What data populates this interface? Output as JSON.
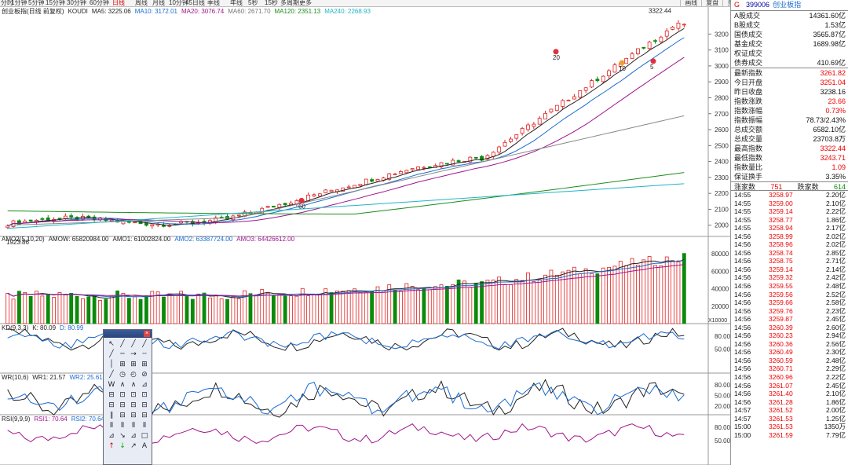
{
  "toolbar": {
    "periods": [
      "分时",
      "1分钟",
      "5分钟",
      "15分钟",
      "30分钟",
      "60分钟",
      "日线",
      "周线",
      "月线",
      "10分钟",
      "45日线",
      "季线",
      "年线",
      "5秒",
      "15秒",
      "多周期",
      "更多"
    ],
    "active_period": "日线",
    "right_buttons": [
      "画线",
      "复盘",
      "多股",
      "统计",
      "画线",
      "F10",
      "自选",
      "返回"
    ]
  },
  "price_chart": {
    "title": "创业板指(日线 前复权)",
    "indicator": "KOUDI",
    "ma_labels": [
      {
        "text": "MA5: 3225.06",
        "color": "#222222"
      },
      {
        "text": "MA10: 3172.01",
        "color": "#1a6bd0"
      },
      {
        "text": "MA20: 3076.74",
        "color": "#a0158c"
      },
      {
        "text": "MA60: 2671.70",
        "color": "#777777"
      },
      {
        "text": "MA120: 2351.13",
        "color": "#1a8c1a"
      },
      {
        "text": "MA240: 2268.93",
        "color": "#22b4c8"
      }
    ],
    "y_ticks": [
      "3200",
      "3100",
      "3000",
      "2900",
      "2800",
      "2700",
      "2600",
      "2500",
      "2400",
      "2300",
      "2200",
      "2100",
      "2000"
    ],
    "high_label": "3322.44",
    "low_label": "1923.86",
    "markers": [
      "20",
      "10",
      "5",
      "60"
    ]
  },
  "volume_chart": {
    "header": [
      {
        "text": "AMO2(5,10,20)",
        "color": "#222222"
      },
      {
        "text": "AMOW: 65820984.00",
        "color": "#222222"
      },
      {
        "text": "AMO1: 61002824.00",
        "color": "#222222"
      },
      {
        "text": "AMO2: 63387724.00",
        "color": "#1a6bd0"
      },
      {
        "text": "AMO3: 64426612.00",
        "color": "#a0158c"
      }
    ],
    "y_ticks": [
      "80000",
      "60000",
      "40000",
      "20000"
    ],
    "unit": "X10000"
  },
  "kd_chart": {
    "header": [
      {
        "text": "KD(9,3,3)",
        "color": "#222222"
      },
      {
        "text": "K: 80.09",
        "color": "#222222"
      },
      {
        "text": "D: 80.99",
        "color": "#1a6bd0"
      }
    ],
    "y_ticks": [
      "80.00",
      "50.00"
    ]
  },
  "wr_chart": {
    "header": [
      {
        "text": "WR(10,6)",
        "color": "#222222"
      },
      {
        "text": "WR1: 21.57",
        "color": "#222222"
      },
      {
        "text": "WR2: 25.61",
        "color": "#1a6bd0"
      }
    ],
    "y_ticks": [
      "80.00",
      "50.00",
      "20.00"
    ]
  },
  "rsi_chart": {
    "header": [
      {
        "text": "RSI(9,9,9)",
        "color": "#222222"
      },
      {
        "text": "RSI1: 70.64",
        "color": "#a0158c"
      },
      {
        "text": "RSI2: 70.64",
        "color": "#1a6bd0"
      }
    ],
    "y_ticks": [
      "80.00",
      "50.00"
    ]
  },
  "palette_tools": [
    "↖",
    "╱",
    "╱",
    "╱",
    "╱",
    "─",
    "→",
    "╌",
    "│",
    "⊞",
    "⊞",
    "⊞",
    "╱",
    "◷",
    "◴",
    "⊘",
    "W",
    "∧",
    "∧",
    "⊿",
    "⊟",
    "⊡",
    "⊡",
    "⊡",
    "⊟",
    "⊟",
    "⊟",
    "⊟",
    "∥",
    "⊟",
    "⊟",
    "⊟",
    "⫴",
    "⫴",
    "⫴",
    "⫴",
    "⊿",
    "↘",
    "⊿",
    "□",
    "↑",
    "↓",
    "↗",
    "A"
  ],
  "info_panel": {
    "code": "399006",
    "name": "创业板指",
    "flag": "G",
    "volume_rows": [
      {
        "label": "A股成交",
        "value": "14361.60亿"
      },
      {
        "label": "B股成交",
        "value": "1.53亿"
      },
      {
        "label": "国债成交",
        "value": "3565.87亿"
      },
      {
        "label": "基金成交",
        "value": "1689.98亿"
      },
      {
        "label": "权证成交",
        "value": ""
      },
      {
        "label": "债券成交",
        "value": "410.69亿"
      }
    ],
    "index_rows": [
      {
        "label": "最新指数",
        "value": "3261.82",
        "color": "red"
      },
      {
        "label": "今日开盘",
        "value": "3251.04",
        "color": "red"
      },
      {
        "label": "昨日收盘",
        "value": "3238.16",
        "color": ""
      },
      {
        "label": "指数涨跌",
        "value": "23.66",
        "color": "red"
      },
      {
        "label": "指数涨幅",
        "value": "0.73%",
        "color": "red"
      },
      {
        "label": "指数振幅",
        "value": "78.73/2.43%",
        "color": ""
      },
      {
        "label": "总成交额",
        "value": "6582.10亿",
        "color": ""
      },
      {
        "label": "总成交量",
        "value": "23703.8万",
        "color": ""
      },
      {
        "label": "最高指数",
        "value": "3322.44",
        "color": "red"
      },
      {
        "label": "最低指数",
        "value": "3243.71",
        "color": "red"
      },
      {
        "label": "指数量比",
        "value": "1.09",
        "color": "red"
      },
      {
        "label": "保证换手",
        "value": "3.35%",
        "color": ""
      }
    ],
    "up_label": "涨家数",
    "up_count": "751",
    "down_label": "跌家数",
    "down_count": "614",
    "ticks": [
      {
        "t": "14:55",
        "p": "3258.97",
        "q": "2.20亿"
      },
      {
        "t": "14:55",
        "p": "3259.00",
        "q": "2.10亿"
      },
      {
        "t": "14:55",
        "p": "3259.14",
        "q": "2.22亿"
      },
      {
        "t": "14:55",
        "p": "3258.77",
        "q": "1.86亿"
      },
      {
        "t": "14:55",
        "p": "3258.94",
        "q": "2.17亿"
      },
      {
        "t": "14:56",
        "p": "3258.99",
        "q": "2.02亿"
      },
      {
        "t": "14:56",
        "p": "3258.96",
        "q": "2.02亿"
      },
      {
        "t": "14:56",
        "p": "3258.74",
        "q": "2.85亿"
      },
      {
        "t": "14:56",
        "p": "3258.75",
        "q": "2.71亿"
      },
      {
        "t": "14:56",
        "p": "3259.14",
        "q": "2.14亿"
      },
      {
        "t": "14:56",
        "p": "3259.32",
        "q": "2.42亿"
      },
      {
        "t": "14:56",
        "p": "3259.55",
        "q": "2.48亿"
      },
      {
        "t": "14:56",
        "p": "3259.56",
        "q": "2.52亿"
      },
      {
        "t": "14:56",
        "p": "3259.66",
        "q": "2.58亿"
      },
      {
        "t": "14:56",
        "p": "3259.76",
        "q": "2.23亿"
      },
      {
        "t": "14:56",
        "p": "3259.87",
        "q": "2.45亿"
      },
      {
        "t": "14:56",
        "p": "3260.39",
        "q": "2.60亿"
      },
      {
        "t": "14:56",
        "p": "3260.23",
        "q": "2.94亿"
      },
      {
        "t": "14:56",
        "p": "3260.36",
        "q": "2.56亿"
      },
      {
        "t": "14:56",
        "p": "3260.49",
        "q": "2.30亿"
      },
      {
        "t": "14:56",
        "p": "3260.59",
        "q": "2.48亿"
      },
      {
        "t": "14:56",
        "p": "3260.71",
        "q": "2.29亿"
      },
      {
        "t": "14:56",
        "p": "3260.96",
        "q": "2.22亿"
      },
      {
        "t": "14:56",
        "p": "3261.07",
        "q": "2.45亿"
      },
      {
        "t": "14:56",
        "p": "3261.40",
        "q": "2.10亿"
      },
      {
        "t": "14:56",
        "p": "3261.28",
        "q": "1.86亿"
      },
      {
        "t": "14:57",
        "p": "3261.52",
        "q": "2.00亿"
      },
      {
        "t": "14:57",
        "p": "3261.53",
        "q": "1.25亿"
      },
      {
        "t": "15:00",
        "p": "3261.53",
        "q": "1350万"
      },
      {
        "t": "15:00",
        "p": "3261.59",
        "q": "7.79亿"
      }
    ]
  }
}
